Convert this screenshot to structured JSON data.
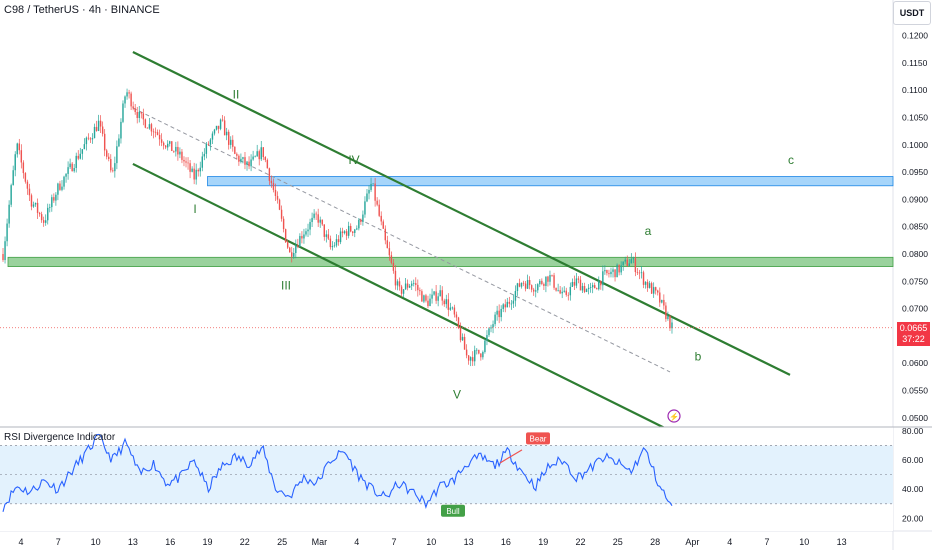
{
  "header": {
    "title": "C98 / TetherUS · 4h · BINANCE",
    "currency": "USDT"
  },
  "price_tag": {
    "value": "0.0665",
    "countdown": "37:22",
    "color": "#f23645"
  },
  "indicator": {
    "name": "RSI Divergence Indicator",
    "bear_label": "Bear",
    "bull_label": "Bull"
  },
  "colors": {
    "up": "#26a69a",
    "down": "#ef5350",
    "channel": "#2e7d32",
    "blue_zone": "#90caf9",
    "green_zone": "#81c784",
    "rsi_line": "#2962ff",
    "rsi_band": "#e3f2fd"
  },
  "chart_data": [
    {
      "type": "candlestick",
      "title": "C98 / TetherUS · 4h · BINANCE",
      "y_ticks": [
        0.05,
        0.055,
        0.06,
        0.065,
        0.07,
        0.075,
        0.08,
        0.085,
        0.09,
        0.095,
        0.1,
        0.105,
        0.11,
        0.115,
        0.12
      ],
      "ylim": [
        0.0485,
        0.1225
      ],
      "x_ticks": [
        "4",
        "7",
        "10",
        "13",
        "16",
        "19",
        "22",
        "25",
        "Mar",
        "4",
        "7",
        "10",
        "13",
        "16",
        "19",
        "22",
        "25",
        "28",
        "Apr",
        "4",
        "7",
        "10",
        "13"
      ],
      "keypoints_close": [
        0.08,
        0.1,
        0.09,
        0.086,
        0.092,
        0.096,
        0.1,
        0.104,
        0.094,
        0.11,
        0.105,
        0.103,
        0.1,
        0.098,
        0.094,
        0.1,
        0.104,
        0.098,
        0.096,
        0.099,
        0.09,
        0.08,
        0.084,
        0.087,
        0.081,
        0.084,
        0.085,
        0.093,
        0.082,
        0.073,
        0.075,
        0.071,
        0.073,
        0.069,
        0.061,
        0.062,
        0.068,
        0.071,
        0.075,
        0.074,
        0.076,
        0.072,
        0.075,
        0.073,
        0.076,
        0.077,
        0.079,
        0.075,
        0.072,
        0.0665
      ],
      "last_price": 0.0665,
      "zones": [
        {
          "name": "resistance",
          "low": 0.0925,
          "high": 0.0942
        },
        {
          "name": "support",
          "low": 0.0777,
          "high": 0.0794
        }
      ],
      "channel_points": {
        "upper": [
          [
            "13",
            0.117
          ],
          [
            "28",
            0.07
          ]
        ],
        "lower": [
          [
            "13",
            0.0965
          ],
          [
            "28",
            0.049
          ]
        ]
      },
      "wave_labels": [
        {
          "text": "I",
          "x": "16",
          "y": 0.0875
        },
        {
          "text": "II",
          "x": "20",
          "y": 0.1085
        },
        {
          "text": "III",
          "x": "25",
          "y": 0.0735
        },
        {
          "text": "IV",
          "x": "Mar",
          "y": 0.0965
        },
        {
          "text": "V",
          "x": "10",
          "y": 0.0535
        },
        {
          "text": "a",
          "x": "25",
          "y": 0.0835
        },
        {
          "text": "b",
          "x": "4",
          "y": 0.0605
        },
        {
          "text": "c",
          "x": "4",
          "y": 0.0965
        }
      ]
    },
    {
      "type": "line",
      "title": "RSI Divergence Indicator",
      "y_ticks": [
        20,
        40,
        60,
        80
      ],
      "ylim": [
        12,
        82
      ],
      "band": [
        30,
        70
      ],
      "midline": 50,
      "keypoints": [
        28,
        42,
        38,
        46,
        40,
        52,
        64,
        76,
        60,
        72,
        50,
        58,
        44,
        48,
        60,
        40,
        55,
        62,
        58,
        68,
        40,
        35,
        48,
        44,
        60,
        66,
        50,
        40,
        34,
        44,
        38,
        30,
        42,
        46,
        58,
        62,
        56,
        66,
        52,
        42,
        56,
        60,
        48,
        54,
        62,
        58,
        52,
        68,
        44,
        27
      ],
      "markers": [
        {
          "label": "Bear",
          "x": "16",
          "value": 66
        },
        {
          "label": "Bull",
          "x": "10",
          "value": 30
        }
      ]
    }
  ]
}
